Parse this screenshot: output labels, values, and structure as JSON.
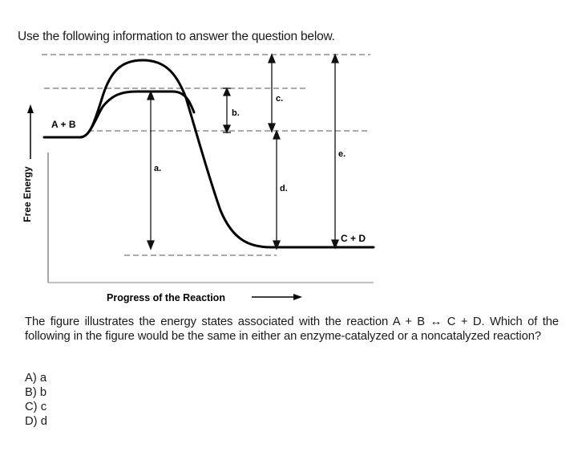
{
  "intro": "Use the following information to answer the question below.",
  "figure": {
    "ylabel": "Free Energy",
    "xlabel": "Progress of the Reaction",
    "reactants_label": "A + B",
    "products_label": "C + D",
    "markers": {
      "a": "a.",
      "b": "b.",
      "c": "c.",
      "d": "d.",
      "e": "e."
    }
  },
  "question": "The figure illustrates the energy states associated with the reaction A + B ↔ C + D. Which of the following in the figure would be the same in either an enzyme-catalyzed or a noncatalyzed reaction?",
  "options": [
    "A) a",
    "B) b",
    "C) c",
    "D) d"
  ]
}
